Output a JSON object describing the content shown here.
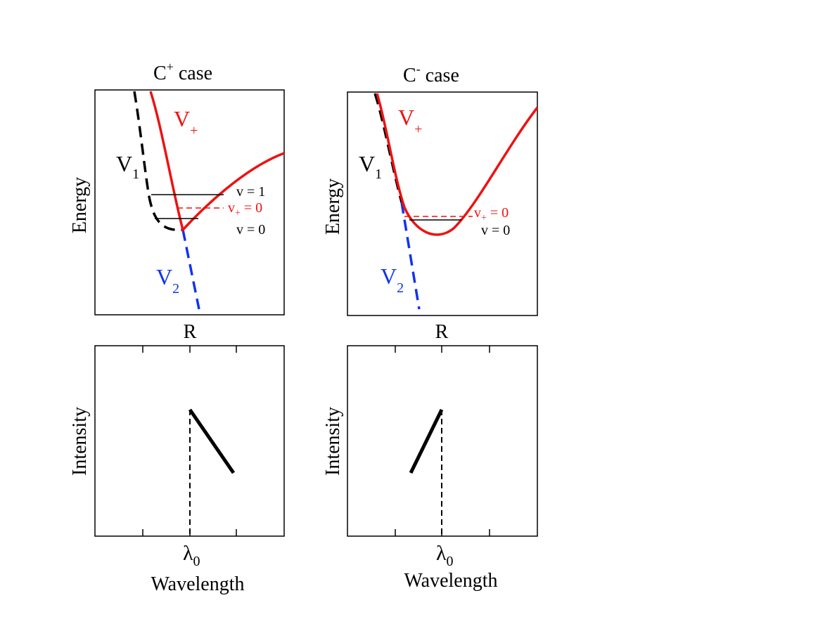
{
  "colors": {
    "red": "#ee1111",
    "blue": "#1133ee",
    "black": "#000000"
  },
  "left": {
    "title_main": "C",
    "title_sup": "+",
    "title_rest": " case",
    "energy_label": "Energy",
    "r_label": "R",
    "curve_v_plus": "V",
    "curve_v_plus_sub": "+",
    "curve_v1": "V",
    "curve_v1_sub": "1",
    "curve_v2": "V",
    "curve_v2_sub": "2",
    "level_v1": "v = 1",
    "level_vplus0_main": "v",
    "level_vplus0_sub": "+",
    "level_vplus0_rest": " = 0",
    "level_v0": "v = 0",
    "intensity_label": "Intensity",
    "lambda_main": "λ",
    "lambda_sub": "0",
    "wavelength_label": "Wavelength"
  },
  "right": {
    "title_main": "C",
    "title_sup": "-",
    "title_rest": " case",
    "energy_label": "Energy",
    "r_label": "R",
    "curve_v_plus": "V",
    "curve_v_plus_sub": "+",
    "curve_v1": "V",
    "curve_v1_sub": "1",
    "curve_v2": "V",
    "curve_v2_sub": "2",
    "level_vplus0_main": "v",
    "level_vplus0_sub": "+",
    "level_vplus0_rest": " = 0",
    "level_v0": "v = 0",
    "intensity_label": "Intensity",
    "lambda_main": "λ",
    "lambda_sub": "0",
    "wavelength_label": "Wavelength"
  }
}
